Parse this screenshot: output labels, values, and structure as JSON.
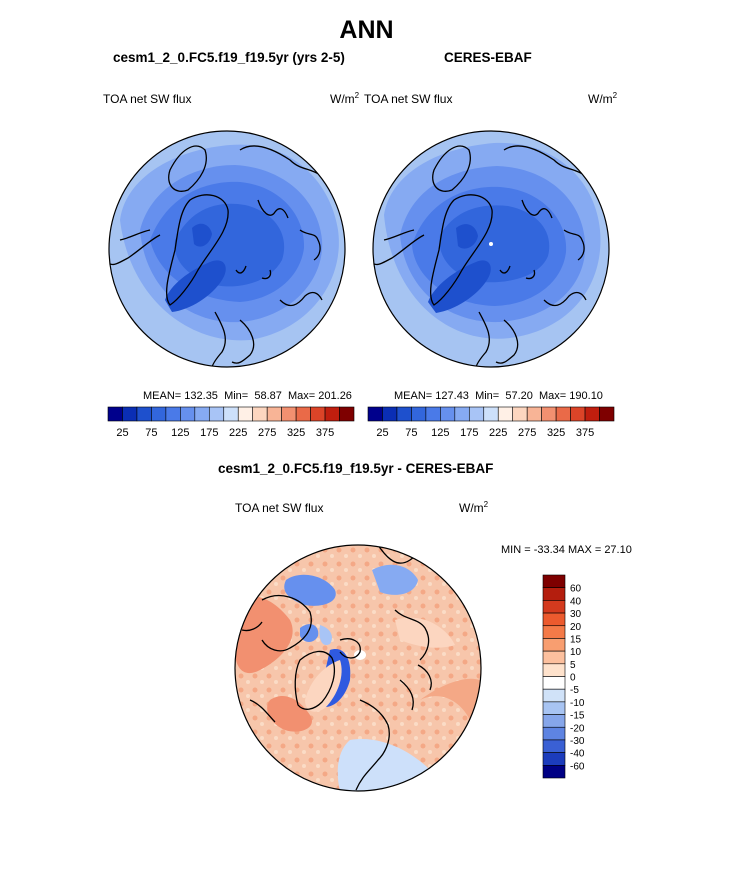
{
  "page": {
    "title": "ANN",
    "diff_title": "cesm1_2_0.FC5.f19_f19.5yr - CERES-EBAF"
  },
  "colors": {
    "ocean_deep": "#2f5ae0",
    "ocean_mid": "#4a72e8",
    "land_light": "#a6c4f2",
    "diff_warm": "#f5b89a",
    "diff_cool": "#9ab8ec",
    "coast": "#000000"
  },
  "panels": [
    {
      "id": "model",
      "title": "cesm1_2_0.FC5.f19_f19.5yr (yrs 2-5)",
      "variable": "TOA net SW flux",
      "units": "W/m",
      "units_sup": "2",
      "mean_label": "MEAN=",
      "mean": "132.35",
      "min_label": "Min=",
      "min": "58.87",
      "max_label": "Max=",
      "max": "201.26"
    },
    {
      "id": "obs",
      "title": "CERES-EBAF",
      "variable": "TOA net SW flux",
      "units": "W/m",
      "units_sup": "2",
      "mean_label": "MEAN=",
      "mean": "127.43",
      "min_label": "Min=",
      "min": "57.20",
      "max_label": "Max=",
      "max": "190.10"
    },
    {
      "id": "diff",
      "variable": "TOA net SW flux",
      "units": "W/m",
      "units_sup": "2",
      "stats": "MIN = -33.34 MAX =  27.10"
    }
  ],
  "chart_data": [
    {
      "type": "heatmap",
      "title": "cesm1_2_0.FC5.f19_f19.5yr (yrs 2-5)",
      "projection": "north polar stereographic",
      "variable": "TOA net SW flux",
      "units": "W/m2",
      "stats": {
        "mean": 132.35,
        "min": 58.87,
        "max": 201.26
      },
      "colorbar": {
        "ticks": [
          "25",
          "75",
          "125",
          "175",
          "225",
          "275",
          "325",
          "375"
        ],
        "colors": [
          "#00008c",
          "#0a2eb4",
          "#1e50cd",
          "#3266dc",
          "#4a7ae8",
          "#6690ee",
          "#86aaf2",
          "#a8c4f6",
          "#cde0fa",
          "#fff0e6",
          "#fcd6c0",
          "#f8b496",
          "#f29070",
          "#ea6a48",
          "#dc4428",
          "#c01e0e",
          "#7e0000"
        ]
      }
    },
    {
      "type": "heatmap",
      "title": "CERES-EBAF",
      "projection": "north polar stereographic",
      "variable": "TOA net SW flux",
      "units": "W/m2",
      "stats": {
        "mean": 127.43,
        "min": 57.2,
        "max": 190.1
      },
      "colorbar": {
        "ticks": [
          "25",
          "75",
          "125",
          "175",
          "225",
          "275",
          "325",
          "375"
        ],
        "colors": [
          "#00008c",
          "#0a2eb4",
          "#1e50cd",
          "#3266dc",
          "#4a7ae8",
          "#6690ee",
          "#86aaf2",
          "#a8c4f6",
          "#cde0fa",
          "#fff0e6",
          "#fcd6c0",
          "#f8b496",
          "#f29070",
          "#ea6a48",
          "#dc4428",
          "#c01e0e",
          "#7e0000"
        ]
      }
    },
    {
      "type": "heatmap",
      "title": "cesm1_2_0.FC5.f19_f19.5yr - CERES-EBAF",
      "projection": "north polar stereographic",
      "variable": "TOA net SW flux",
      "units": "W/m2",
      "stats": {
        "min": -33.34,
        "max": 27.1
      },
      "colorbar": {
        "ticks": [
          "60",
          "40",
          "30",
          "20",
          "15",
          "10",
          "5",
          "0",
          "-5",
          "-10",
          "-15",
          "-20",
          "-30",
          "-40",
          "-60"
        ],
        "colors": [
          "#7e0000",
          "#b41e0e",
          "#d43a1e",
          "#ec5a2e",
          "#f47a48",
          "#f89e70",
          "#fcc09e",
          "#fee2cc",
          "#ffffff",
          "#d0e2f8",
          "#a8c4f2",
          "#86a6ea",
          "#5e84e2",
          "#3a60d4",
          "#1c3cbc",
          "#000084"
        ]
      }
    }
  ]
}
